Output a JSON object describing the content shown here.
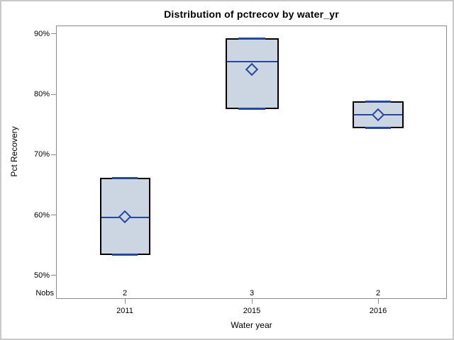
{
  "chart_data": {
    "type": "box",
    "title": "Distribution of pctrecov by water_yr",
    "xlabel": "Water year",
    "ylabel": "Pct Recovery",
    "nobs_label": "Nobs",
    "ylim": [
      46.1,
      91.4
    ],
    "yticks": {
      "values": [
        90,
        80,
        70,
        60,
        50
      ],
      "labels": [
        "90%",
        "80%",
        "70%",
        "60%",
        "50%"
      ]
    },
    "categories": [
      "2011",
      "2015",
      "2016"
    ],
    "grid": false,
    "legend": "none",
    "boxes": [
      {
        "category": "2011",
        "nobs": "2",
        "low": 53.4,
        "high": 66.2,
        "median": 59.6,
        "mean": 59.7
      },
      {
        "category": "2015",
        "nobs": "3",
        "low": 77.6,
        "high": 89.3,
        "median": 85.4,
        "mean": 84.1
      },
      {
        "category": "2016",
        "nobs": "2",
        "low": 74.4,
        "high": 78.8,
        "median": 76.6,
        "mean": 76.6
      }
    ],
    "colors": {
      "box_fill": "#ccd6e3",
      "box_border": "#000000",
      "median_line": "#24489e",
      "whisker_cap": "#24489e",
      "mean_marker": "#24489e",
      "axis_line": "#8b8b8b",
      "text": "#000000",
      "figure_border": "#c9c9c9"
    }
  }
}
